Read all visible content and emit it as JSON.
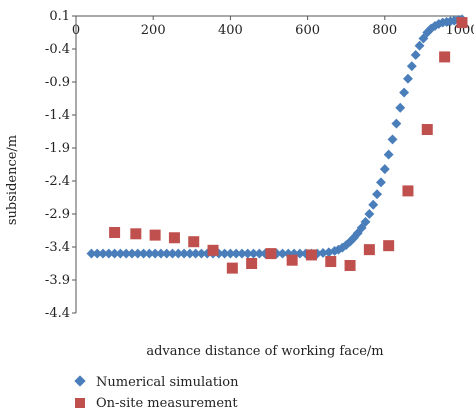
{
  "chart_data": {
    "type": "scatter",
    "title": "",
    "xlabel": "advance distance of working face/m",
    "ylabel": "subsidence/m",
    "xlim": [
      0,
      1000
    ],
    "ylim": [
      -4.4,
      0.1
    ],
    "x_ticks": [
      "0",
      "200",
      "400",
      "600",
      "800",
      "1000"
    ],
    "x_tick_values": [
      0,
      200,
      400,
      600,
      800,
      1000
    ],
    "y_ticks": [
      "0.1",
      "-0.4",
      "-0.9",
      "-1.4",
      "-1.9",
      "-2.4",
      "-2.9",
      "-3.4",
      "-3.9",
      "-4.4"
    ],
    "y_tick_values": [
      0.1,
      -0.4,
      -0.9,
      -1.4,
      -1.9,
      -2.4,
      -2.9,
      -3.4,
      -3.9,
      -4.4
    ],
    "x_axis_position": "top",
    "grid": false,
    "legend_position": "bottom-left",
    "series": [
      {
        "name": "Numerical simulation",
        "marker": "diamond",
        "color": "#4a7ebb",
        "x": [
          40,
          55,
          70,
          85,
          100,
          115,
          130,
          145,
          160,
          175,
          190,
          205,
          220,
          235,
          250,
          265,
          280,
          295,
          310,
          325,
          340,
          355,
          370,
          385,
          400,
          415,
          430,
          445,
          460,
          475,
          490,
          505,
          520,
          535,
          550,
          565,
          580,
          595,
          610,
          625,
          640,
          655,
          670,
          680,
          690,
          700,
          710,
          720,
          730,
          740,
          750,
          760,
          770,
          780,
          790,
          800,
          810,
          820,
          830,
          840,
          850,
          860,
          870,
          880,
          890,
          900,
          910,
          920,
          930,
          940,
          950,
          960,
          970,
          980,
          990,
          1000
        ],
        "y": [
          -3.5,
          -3.5,
          -3.5,
          -3.5,
          -3.5,
          -3.5,
          -3.5,
          -3.5,
          -3.5,
          -3.5,
          -3.5,
          -3.5,
          -3.5,
          -3.5,
          -3.5,
          -3.5,
          -3.5,
          -3.5,
          -3.5,
          -3.5,
          -3.5,
          -3.5,
          -3.5,
          -3.5,
          -3.5,
          -3.5,
          -3.5,
          -3.5,
          -3.5,
          -3.5,
          -3.5,
          -3.5,
          -3.5,
          -3.5,
          -3.5,
          -3.5,
          -3.5,
          -3.5,
          -3.5,
          -3.5,
          -3.49,
          -3.48,
          -3.46,
          -3.44,
          -3.41,
          -3.37,
          -3.32,
          -3.26,
          -3.19,
          -3.11,
          -3.02,
          -2.9,
          -2.76,
          -2.6,
          -2.42,
          -2.22,
          -2.0,
          -1.77,
          -1.53,
          -1.29,
          -1.06,
          -0.85,
          -0.66,
          -0.49,
          -0.35,
          -0.24,
          -0.15,
          -0.09,
          -0.05,
          -0.02,
          0.0,
          0.01,
          0.02,
          0.03,
          0.04,
          0.05
        ]
      },
      {
        "name": "On-site measurement",
        "marker": "square",
        "color": "#c0504d",
        "x": [
          100,
          155,
          205,
          255,
          305,
          355,
          405,
          455,
          505,
          560,
          610,
          660,
          710,
          760,
          810,
          860,
          910,
          955,
          1000
        ],
        "y": [
          -3.18,
          -3.2,
          -3.22,
          -3.26,
          -3.32,
          -3.45,
          -3.72,
          -3.65,
          -3.5,
          -3.6,
          -3.52,
          -3.62,
          -3.68,
          -3.44,
          -3.38,
          -2.55,
          -1.62,
          -0.52,
          0.0
        ]
      }
    ]
  }
}
